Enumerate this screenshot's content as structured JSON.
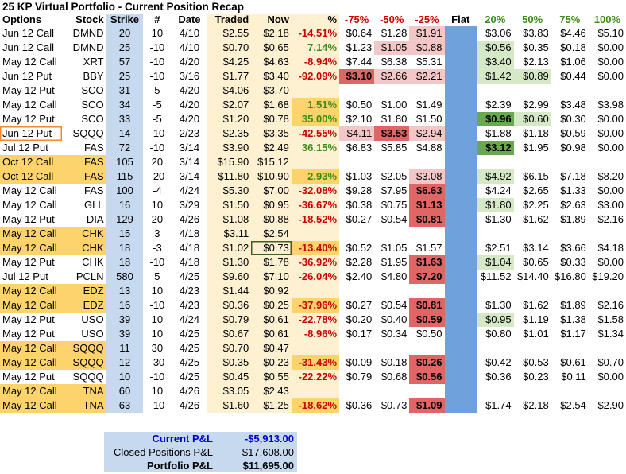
{
  "title": "25 KP Virtual Portfolio - Current Position Recap",
  "headers": [
    "Options",
    "Stock",
    "Strike",
    "#",
    "Date",
    "Traded",
    "Now",
    "%",
    "-75%",
    "-50%",
    "-25%",
    "Flat",
    "20%",
    "50%",
    "75%",
    "100%"
  ],
  "rows": [
    {
      "cells": [
        "Jun 12 Call",
        "DMND",
        "20",
        "10",
        "4/10",
        "$2.55",
        "$2.18",
        "-14.51%",
        "$0.64",
        "$1.28",
        "$1.91",
        "",
        "$3.06",
        "$3.83",
        "$4.46",
        "$5.10"
      ],
      "style": {
        "7": "neg",
        "10": "pink"
      }
    },
    {
      "cells": [
        "Jun 12 Call",
        "DMND",
        "25",
        "-10",
        "4/10",
        "$0.70",
        "$0.65",
        "7.14%",
        "$1.23",
        "$1.05",
        "$0.88",
        "",
        "$0.56",
        "$0.35",
        "$0.18",
        "$0.00"
      ],
      "style": {
        "7": "pos",
        "9": "pink",
        "10": "pink",
        "12": "lgreen"
      }
    },
    {
      "cells": [
        "May 12 Call",
        "XRT",
        "57",
        "-10",
        "4/20",
        "$4.25",
        "$4.63",
        "-8.94%",
        "$7.44",
        "$6.38",
        "$5.31",
        "",
        "$3.40",
        "$2.13",
        "$1.06",
        "$0.00"
      ],
      "style": {
        "7": "neg",
        "12": "lgreen"
      }
    },
    {
      "cells": [
        "Jun 12 Put",
        "BBY",
        "25",
        "-10",
        "3/16",
        "$1.77",
        "$3.40",
        "-92.09%",
        "$3.10",
        "$2.66",
        "$2.21",
        "",
        "$1.42",
        "$0.89",
        "$0.44",
        "$0.00"
      ],
      "style": {
        "7": "neg",
        "8": "red",
        "9": "pink",
        "10": "pink",
        "12": "lgreen",
        "13": "lgreen"
      }
    },
    {
      "cells": [
        "May 12 Put",
        "SCO",
        "31",
        "5",
        "4/20",
        "$4.06",
        "$3.70",
        "",
        "",
        "",
        "",
        "",
        "",
        "",
        "",
        ""
      ],
      "style": {}
    },
    {
      "cells": [
        "May 12 Call",
        "SCO",
        "34",
        "-5",
        "4/20",
        "$2.07",
        "$1.68",
        "1.51%",
        "$0.50",
        "$1.00",
        "$1.49",
        "",
        "$2.39",
        "$2.99",
        "$3.48",
        "$3.98"
      ],
      "style": {
        "7": "pos hl"
      }
    },
    {
      "cells": [
        "May 12 Put",
        "SCO",
        "33",
        "-5",
        "4/20",
        "$1.20",
        "$0.78",
        "35.00%",
        "$2.10",
        "$1.80",
        "$1.50",
        "",
        "$0.96",
        "$0.60",
        "$0.30",
        "$0.00"
      ],
      "style": {
        "7": "pos hl",
        "12": "green",
        "13": "lgreen"
      }
    },
    {
      "cells": [
        "Jun 12 Put",
        "SQQQ",
        "14",
        "-10",
        "2/23",
        "$2.35",
        "$3.35",
        "-42.55%",
        "$4.11",
        "$3.53",
        "$2.94",
        "",
        "$1.88",
        "$1.18",
        "$0.59",
        "$0.00"
      ],
      "style": {
        "0": "outline",
        "7": "neg",
        "8": "pink",
        "9": "red",
        "10": "pink"
      }
    },
    {
      "cells": [
        "Jul 12 Put",
        "FAS",
        "72",
        "-10",
        "3/14",
        "$3.90",
        "$2.49",
        "36.15%",
        "$6.83",
        "$5.85",
        "$4.88",
        "",
        "$3.12",
        "$1.95",
        "$0.98",
        "$0.00"
      ],
      "style": {
        "7": "pos",
        "12": "green"
      }
    },
    {
      "cells": [
        "Oct 12 Call",
        "FAS",
        "105",
        "20",
        "3/14",
        "$15.90",
        "$15.12",
        "",
        "",
        "",
        "",
        "",
        "",
        "",
        "",
        ""
      ],
      "style": {
        "0": "hl",
        "1": "hl"
      }
    },
    {
      "cells": [
        "Oct 12 Call",
        "FAS",
        "115",
        "-20",
        "3/14",
        "$11.80",
        "$10.90",
        "2.93%",
        "$1.03",
        "$2.05",
        "$3.08",
        "",
        "$4.92",
        "$6.15",
        "$7.18",
        "$8.20"
      ],
      "style": {
        "0": "hl",
        "1": "hl",
        "7": "pos hl",
        "10": "pink",
        "12": "lgreen"
      }
    },
    {
      "cells": [
        "May 12 Call",
        "FAS",
        "100",
        "-4",
        "4/24",
        "$5.30",
        "$7.00",
        "-32.08%",
        "$9.28",
        "$7.95",
        "$6.63",
        "",
        "$4.24",
        "$2.65",
        "$1.33",
        "$0.00"
      ],
      "style": {
        "7": "neg",
        "10": "red"
      }
    },
    {
      "cells": [
        "May 12 Call",
        "GLL",
        "16",
        "10",
        "3/29",
        "$1.50",
        "$0.95",
        "-36.67%",
        "$0.38",
        "$0.75",
        "$1.13",
        "",
        "$1.80",
        "$2.25",
        "$2.63",
        "$3.00"
      ],
      "style": {
        "7": "neg",
        "10": "red",
        "12": "lgreen"
      }
    },
    {
      "cells": [
        "May 12 Put",
        "DIA",
        "129",
        "20",
        "4/26",
        "$1.08",
        "$0.88",
        "-18.52%",
        "$0.27",
        "$0.54",
        "$0.81",
        "",
        "$1.30",
        "$1.62",
        "$1.89",
        "$2.16"
      ],
      "style": {
        "7": "neg",
        "10": "red"
      }
    },
    {
      "cells": [
        "May 12 Call",
        "CHK",
        "15",
        "3",
        "4/18",
        "$3.11",
        "$2.54",
        "",
        "",
        "",
        "",
        "",
        "",
        "",
        "",
        ""
      ],
      "style": {
        "0": "hl",
        "1": "hl"
      }
    },
    {
      "cells": [
        "May 12 Call",
        "CHK",
        "18",
        "-3",
        "4/18",
        "$1.02",
        "$0.73",
        "-13.40%",
        "$0.52",
        "$1.05",
        "$1.57",
        "",
        "$2.51",
        "$3.14",
        "$3.66",
        "$4.18"
      ],
      "style": {
        "0": "hl",
        "1": "hl",
        "6": "sel",
        "7": "neg hl"
      }
    },
    {
      "cells": [
        "May 12 Put",
        "CHK",
        "18",
        "-10",
        "4/18",
        "$1.30",
        "$1.78",
        "-36.92%",
        "$2.28",
        "$1.95",
        "$1.63",
        "",
        "$1.04",
        "$0.65",
        "$0.33",
        "$0.00"
      ],
      "style": {
        "7": "neg",
        "10": "red",
        "12": "lgreen"
      }
    },
    {
      "cells": [
        "Jul 12 Put",
        "PCLN",
        "580",
        "5",
        "4/25",
        "$9.60",
        "$7.10",
        "-26.04%",
        "$2.40",
        "$4.80",
        "$7.20",
        "",
        "$11.52",
        "$14.40",
        "$16.80",
        "$19.20"
      ],
      "style": {
        "7": "neg",
        "10": "red"
      }
    },
    {
      "cells": [
        "May 12 Call",
        "EDZ",
        "13",
        "10",
        "4/23",
        "$1.44",
        "$0.92",
        "",
        "",
        "",
        "",
        "",
        "",
        "",
        "",
        ""
      ],
      "style": {
        "0": "hl",
        "1": "hl"
      }
    },
    {
      "cells": [
        "May 12 Call",
        "EDZ",
        "16",
        "-10",
        "4/23",
        "$0.36",
        "$0.25",
        "-37.96%",
        "$0.27",
        "$0.54",
        "$0.81",
        "",
        "$1.30",
        "$1.62",
        "$1.89",
        "$2.16"
      ],
      "style": {
        "0": "hl",
        "1": "hl",
        "7": "neg hl",
        "10": "red"
      }
    },
    {
      "cells": [
        "May 12 Put",
        "USO",
        "39",
        "10",
        "4/24",
        "$0.79",
        "$0.61",
        "-22.78%",
        "$0.20",
        "$0.40",
        "$0.59",
        "",
        "$0.95",
        "$1.19",
        "$1.38",
        "$1.58"
      ],
      "style": {
        "7": "neg",
        "10": "red",
        "12": "lgreen"
      }
    },
    {
      "cells": [
        "May 12 Put",
        "USO",
        "39",
        "10",
        "4/25",
        "$0.67",
        "$0.61",
        "-8.96%",
        "$0.17",
        "$0.34",
        "$0.50",
        "",
        "$0.80",
        "$1.01",
        "$1.17",
        "$1.34"
      ],
      "style": {
        "7": "neg"
      }
    },
    {
      "cells": [
        "May 12 Call",
        "SQQQ",
        "11",
        "30",
        "4/25",
        "$0.70",
        "$0.47",
        "",
        "",
        "",
        "",
        "",
        "",
        "",
        "",
        ""
      ],
      "style": {
        "0": "hl",
        "1": "hl"
      }
    },
    {
      "cells": [
        "May 12 Call",
        "SQQQ",
        "12",
        "-30",
        "4/25",
        "$0.35",
        "$0.23",
        "-31.43%",
        "$0.09",
        "$0.18",
        "$0.26",
        "",
        "$0.42",
        "$0.53",
        "$0.61",
        "$0.70"
      ],
      "style": {
        "0": "hl",
        "1": "hl",
        "7": "neg hl",
        "10": "red"
      }
    },
    {
      "cells": [
        "May 12 Put",
        "SQQQ",
        "10",
        "-10",
        "4/25",
        "$0.45",
        "$0.55",
        "-22.22%",
        "$0.79",
        "$0.68",
        "$0.56",
        "",
        "$0.36",
        "$0.23",
        "$0.11",
        "$0.00"
      ],
      "style": {
        "7": "neg",
        "10": "red"
      }
    },
    {
      "cells": [
        "May 12 Call",
        "TNA",
        "60",
        "10",
        "4/26",
        "$3.05",
        "$2.43",
        "",
        "",
        "",
        "",
        "",
        "",
        "",
        "",
        ""
      ],
      "style": {
        "0": "hl",
        "1": "hl"
      }
    },
    {
      "cells": [
        "May 12 Call",
        "TNA",
        "63",
        "-10",
        "4/26",
        "$1.60",
        "$1.25",
        "-18.62%",
        "$0.36",
        "$0.73",
        "$1.09",
        "",
        "$1.74",
        "$2.18",
        "$2.54",
        "$2.90"
      ],
      "style": {
        "0": "hl",
        "1": "hl",
        "7": "neg hl",
        "10": "red"
      }
    }
  ],
  "summary": [
    {
      "label": "Current P&L",
      "value": "-$5,913.00",
      "style": "blue b"
    },
    {
      "label": "Closed Positions P&L",
      "value": "$17,608.00",
      "style": ""
    },
    {
      "label": "Portfolio P&L",
      "value": "$11,695.00",
      "style": "b"
    }
  ]
}
